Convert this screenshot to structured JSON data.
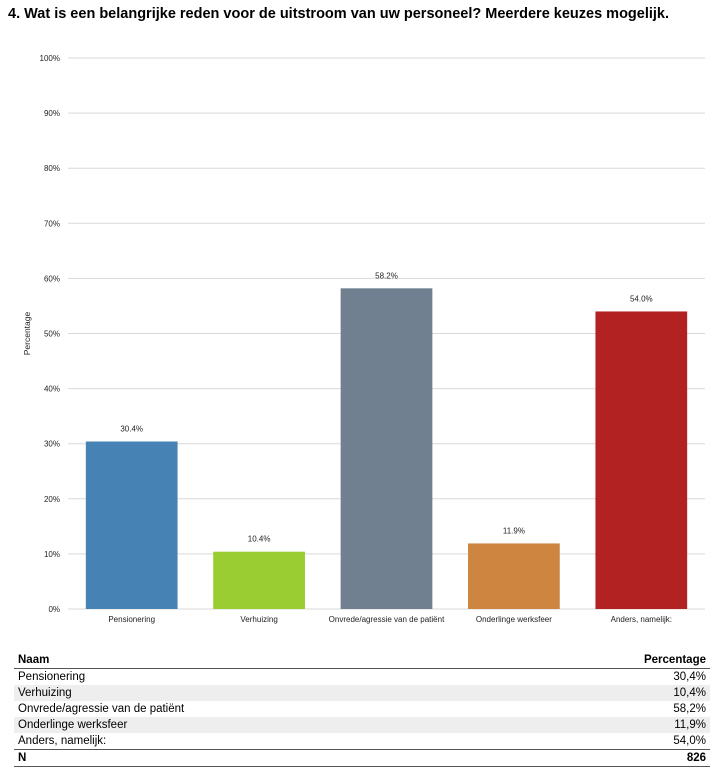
{
  "title": "4. Wat is een belangrijke reden voor de uitstroom van uw personeel? Meerdere keuzes mogelijk.",
  "colors": {
    "bars": [
      "#4682b4",
      "#9acd32",
      "#708090",
      "#cd853f",
      "#b22222"
    ],
    "grid": "#d9d9d9"
  },
  "chart_data": {
    "type": "bar",
    "ylabel": "Percentage",
    "ylim": [
      0,
      100
    ],
    "yticks": [
      "0%",
      "10%",
      "20%",
      "30%",
      "40%",
      "50%",
      "60%",
      "70%",
      "80%",
      "90%",
      "100%"
    ],
    "categories": [
      "Pensionering",
      "Verhuizing",
      "Onvrede/agressie van de patiënt",
      "Onderlinge werksfeer",
      "Anders, namelijk:"
    ],
    "values": [
      30.4,
      10.4,
      58.2,
      11.9,
      54.0
    ],
    "data_labels": [
      "30.4%",
      "10.4%",
      "58.2%",
      "11.9%",
      "54.0%"
    ],
    "grid": true
  },
  "table": {
    "headers": {
      "name": "Naam",
      "value": "Percentage"
    },
    "rows": [
      {
        "name": "Pensionering",
        "value": "30,4%"
      },
      {
        "name": "Verhuizing",
        "value": "10,4%"
      },
      {
        "name": "Onvrede/agressie van de patiënt",
        "value": "58,2%"
      },
      {
        "name": "Onderlinge werksfeer",
        "value": "11,9%"
      },
      {
        "name": "Anders, namelijk:",
        "value": "54,0%"
      }
    ],
    "total": {
      "name": "N",
      "value": "826"
    }
  }
}
